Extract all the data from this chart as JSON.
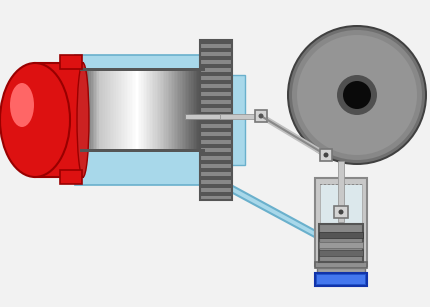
{
  "bg_color": "#f2f2f2",
  "red_color": "#dd1111",
  "red_dark": "#990000",
  "red_flange": "#cc0000",
  "light_blue": "#a8d8ea",
  "light_blue_border": "#6ab0cc",
  "regen_grey": "#888888",
  "regen_dark": "#555555",
  "piston_light": "#d8d8d8",
  "piston_mid": "#909090",
  "piston_dark": "#444444",
  "flywheel_outer": "#606060",
  "flywheel_mid": "#888888",
  "flywheel_light": "#a0a0a0",
  "flywheel_hole": "#111111",
  "rod_light": "#cccccc",
  "rod_dark": "#999999",
  "joint_fill": "#d4d4d4",
  "joint_border": "#777777",
  "tube_fill": "#a8d8ea",
  "tube_border": "#6ab0cc",
  "pc_wall": "#b0b0b0",
  "pc_inner": "#e0e8e8",
  "pc_piston_dark": "#707070",
  "pc_piston_light": "#c0c0c0",
  "blue_base": "#2255cc",
  "blue_base_light": "#4477ee",
  "white": "#ffffff"
}
